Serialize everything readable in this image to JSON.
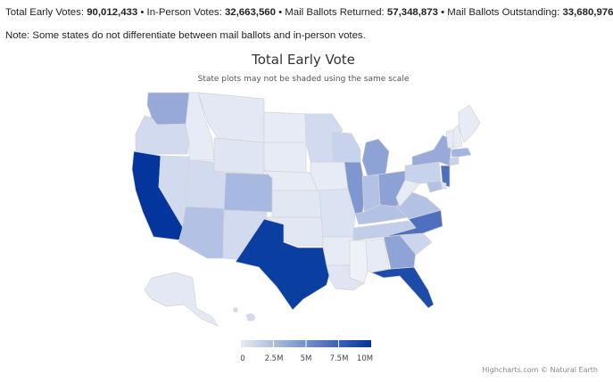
{
  "summary": {
    "early_label": "Total Early Votes:",
    "early_value": "90,012,433",
    "inperson_label": "In-Person Votes:",
    "inperson_value": "32,663,560",
    "mail_returned_label": "Mail Ballots Returned:",
    "mail_returned_value": "57,348,873",
    "mail_outstanding_label": "Mail Ballots Outstanding:",
    "mail_outstanding_value": "33,680,976",
    "separator": "•"
  },
  "note": "Note: Some states do not differentiate between mail ballots and in-person votes.",
  "chart": {
    "title": "Total Early Vote",
    "subtitle": "State plots may not be shaded using the same scale",
    "credits": "Highcharts.com © Natural Earth"
  },
  "chart_data": {
    "type": "choropleth",
    "title": "Total Early Vote",
    "subtitle": "State plots may not be shaded using the same scale",
    "colors": {
      "low": "#e6ebf5",
      "high": "#03359c",
      "border": "#cccccc"
    },
    "color_axis": {
      "min": 0,
      "max": 10000000,
      "ticks": [
        "0",
        "2.5M",
        "5M",
        "7.5M",
        "10M"
      ]
    }
  }
}
